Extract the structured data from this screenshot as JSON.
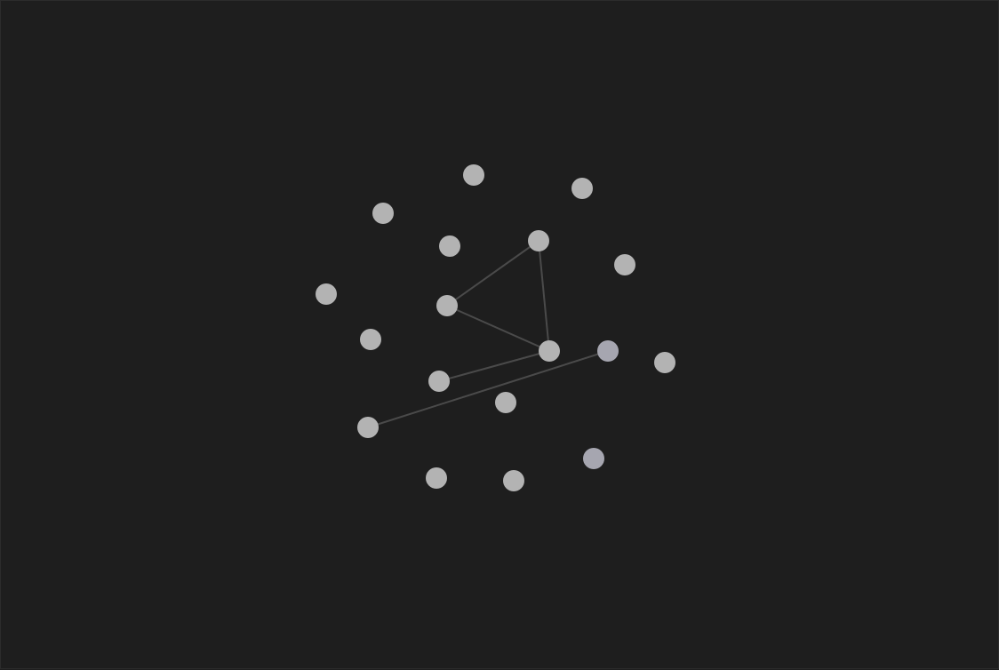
{
  "graph": {
    "colors": {
      "background": "#1e1e1e",
      "node": "#b3b3b3",
      "node_focused": "#a6a6b0",
      "edge": "#4a4a4a"
    },
    "nodes": [
      {
        "id": "n1",
        "state": "default"
      },
      {
        "id": "n2",
        "state": "default"
      },
      {
        "id": "n3",
        "state": "default"
      },
      {
        "id": "n4",
        "state": "default"
      },
      {
        "id": "n5",
        "state": "default"
      },
      {
        "id": "n6",
        "state": "default"
      },
      {
        "id": "n7",
        "state": "default"
      },
      {
        "id": "n8",
        "state": "default"
      },
      {
        "id": "n9",
        "state": "default"
      },
      {
        "id": "n10",
        "state": "default"
      },
      {
        "id": "n11",
        "state": "default"
      },
      {
        "id": "n12",
        "state": "focused"
      },
      {
        "id": "n13",
        "state": "default"
      },
      {
        "id": "n14",
        "state": "default"
      },
      {
        "id": "n15",
        "state": "default"
      },
      {
        "id": "n16",
        "state": "focused"
      },
      {
        "id": "n17",
        "state": "default"
      },
      {
        "id": "n18",
        "state": "default"
      }
    ],
    "edges": [
      {
        "from": "n5",
        "to": "n8"
      },
      {
        "from": "n5",
        "to": "n11"
      },
      {
        "from": "n8",
        "to": "n11"
      },
      {
        "from": "n11",
        "to": "n13"
      },
      {
        "from": "n12",
        "to": "n15"
      }
    ]
  }
}
